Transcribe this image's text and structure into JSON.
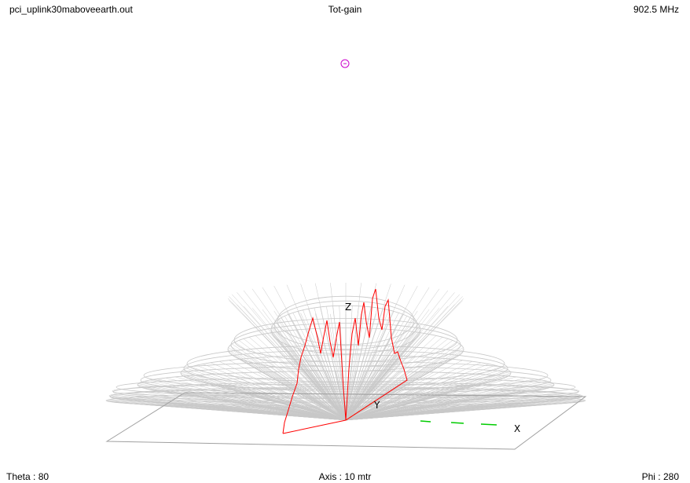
{
  "header": {
    "filename": "pci_uplink30maboveearth.out",
    "title": "Tot-gain",
    "frequency": "902.5 MHz"
  },
  "footer": {
    "theta": "Theta : 80",
    "axis": "Axis : 10 mtr",
    "phi": "Phi : 280"
  },
  "axes": {
    "x_label": "X",
    "y_label": "Y",
    "z_label": "Z"
  },
  "colors": {
    "mesh": "#c8c8c8",
    "cut": "#ff0000",
    "ground": "#a0a0a0",
    "x_axis": "#00cc00",
    "marker": "#cc00cc"
  }
}
